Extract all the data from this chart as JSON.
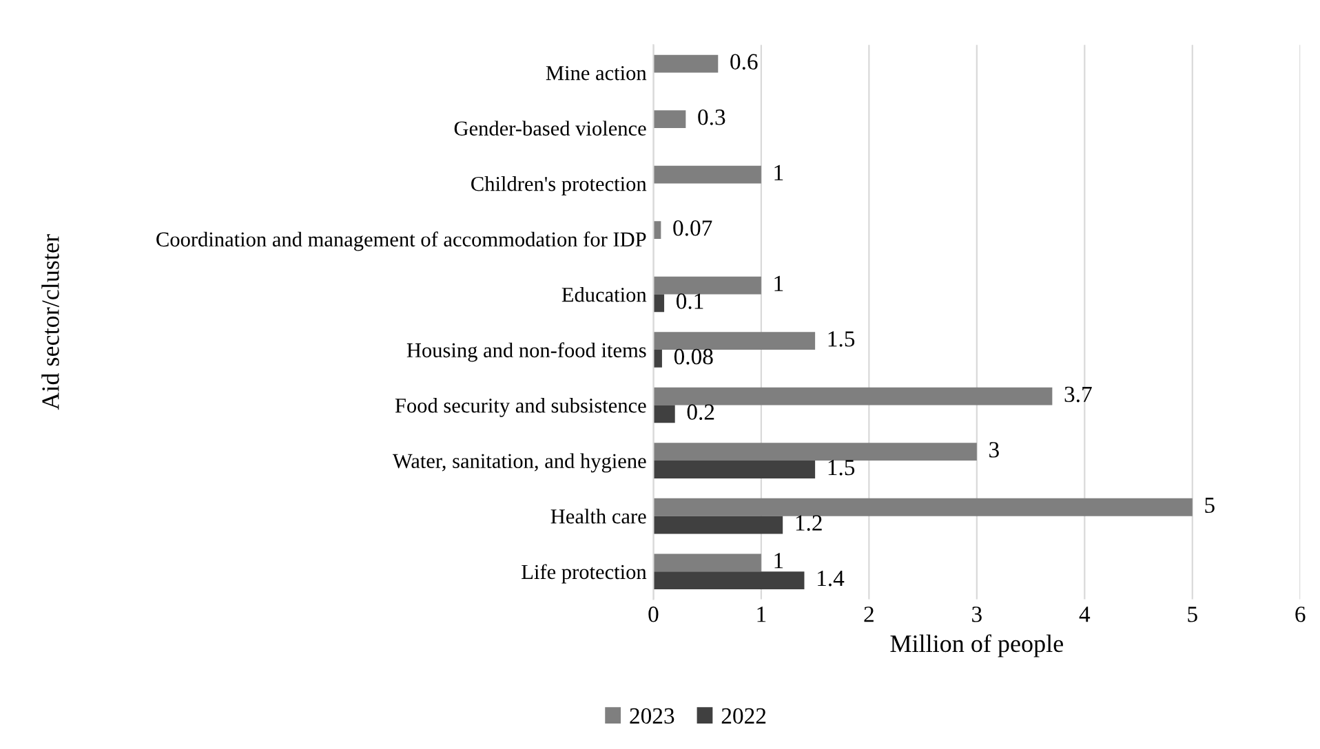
{
  "chart_data": {
    "type": "bar",
    "orientation": "horizontal",
    "ylabel": "Aid sector/cluster",
    "xlabel": "Million of people",
    "categories": [
      "Mine action",
      "Gender-based violence",
      "Children's protection",
      "Coordination and management of accommodation for IDP",
      "Education",
      "Housing and non-food items",
      "Food security and subsistence",
      "Water, sanitation, and hygiene",
      "Health care",
      "Life protection"
    ],
    "series": [
      {
        "name": "2023",
        "color": "#7f7f7f",
        "values": [
          0.6,
          0.3,
          1,
          0.07,
          1,
          1.5,
          3.7,
          3,
          5,
          1
        ]
      },
      {
        "name": "2022",
        "color": "#404040",
        "values": [
          null,
          null,
          null,
          null,
          0.1,
          0.08,
          0.2,
          1.5,
          1.2,
          1.4
        ]
      }
    ],
    "xlim": [
      0,
      6
    ],
    "xticks": [
      0,
      1,
      2,
      3,
      4,
      5,
      6
    ],
    "grid": "x",
    "legend": "bottom",
    "data_labels": true
  }
}
